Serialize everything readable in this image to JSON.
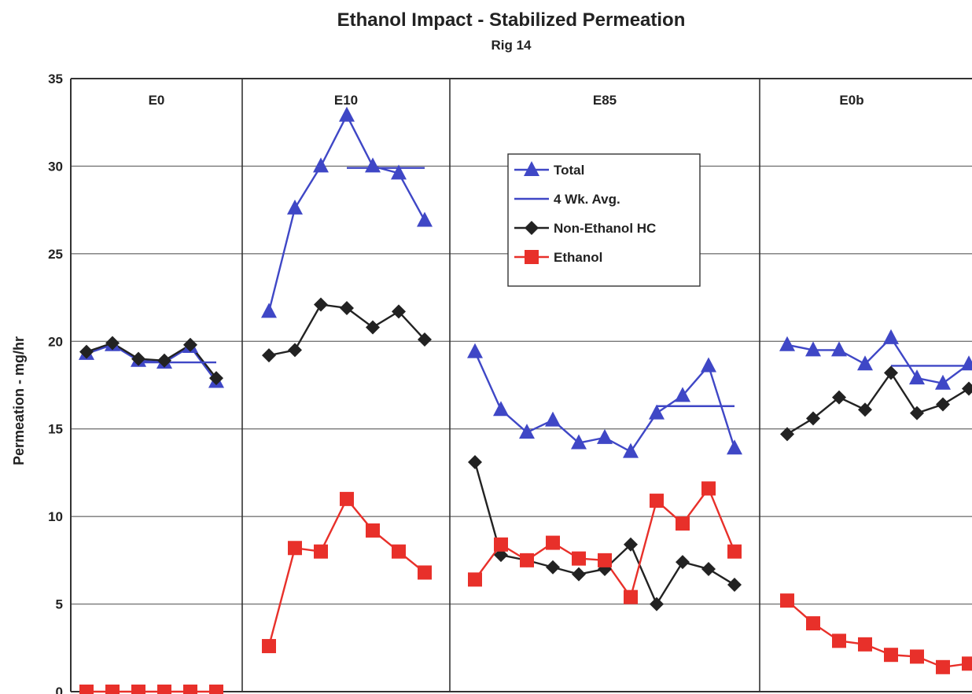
{
  "chart_data": {
    "type": "line",
    "title": "Ethanol Impact - Stabilized Permeation",
    "subtitle": "Rig 14",
    "ylabel": "Permeation - mg/hr",
    "xlabel": "",
    "ylim": [
      0,
      35
    ],
    "yticks": [
      0,
      5,
      10,
      15,
      20,
      25,
      30,
      35
    ],
    "grid": true,
    "legend_position": "top-center",
    "panels": [
      "E0",
      "E10",
      "E85",
      "E0b"
    ],
    "series": [
      {
        "name": "Total",
        "color": "#3f47c6",
        "marker": "triangle",
        "panels": [
          [
            19.3,
            19.8,
            18.9,
            18.8,
            19.7,
            17.7
          ],
          [
            21.7,
            27.6,
            30.0,
            32.9,
            30.0,
            29.6,
            26.9
          ],
          [
            19.4,
            16.1,
            14.8,
            15.5,
            14.2,
            14.5,
            13.7,
            15.9,
            16.9,
            18.6,
            13.9
          ],
          [
            19.8,
            19.5,
            19.5,
            18.7,
            20.2,
            17.9,
            17.6,
            18.7
          ]
        ]
      },
      {
        "name": "4 Wk. Avg.",
        "color": "#3f47c6",
        "marker": "none",
        "segments": [
          {
            "panel": 0,
            "from_index": 2,
            "to_index": 5,
            "value": 18.8
          },
          {
            "panel": 1,
            "from_index": 3,
            "to_index": 6,
            "value": 29.9
          },
          {
            "panel": 2,
            "from_index": 7,
            "to_index": 10,
            "value": 16.3
          },
          {
            "panel": 3,
            "from_index": 4,
            "to_index": 7,
            "value": 18.6
          }
        ]
      },
      {
        "name": "Non-Ethanol HC",
        "color": "#222222",
        "marker": "diamond",
        "panels": [
          [
            19.4,
            19.9,
            19.0,
            18.9,
            19.8,
            17.9
          ],
          [
            19.2,
            19.5,
            22.1,
            21.9,
            20.8,
            21.7,
            20.1
          ],
          [
            13.1,
            7.8,
            7.5,
            7.1,
            6.7,
            7.0,
            8.4,
            5.0,
            7.4,
            7.0,
            6.1
          ],
          [
            14.7,
            15.6,
            16.8,
            16.1,
            18.2,
            15.9,
            16.4,
            17.3
          ]
        ]
      },
      {
        "name": "Ethanol",
        "color": "#e8302a",
        "marker": "square",
        "panels": [
          [
            0.0,
            0.0,
            0.0,
            0.0,
            0.0,
            0.0
          ],
          [
            2.6,
            8.2,
            8.0,
            11.0,
            9.2,
            8.0,
            6.8
          ],
          [
            6.4,
            8.4,
            7.5,
            8.5,
            7.6,
            7.5,
            5.4,
            10.9,
            9.6,
            11.6,
            8.0
          ],
          [
            5.2,
            3.9,
            2.9,
            2.7,
            2.1,
            2.0,
            1.4,
            1.6
          ]
        ]
      }
    ]
  }
}
